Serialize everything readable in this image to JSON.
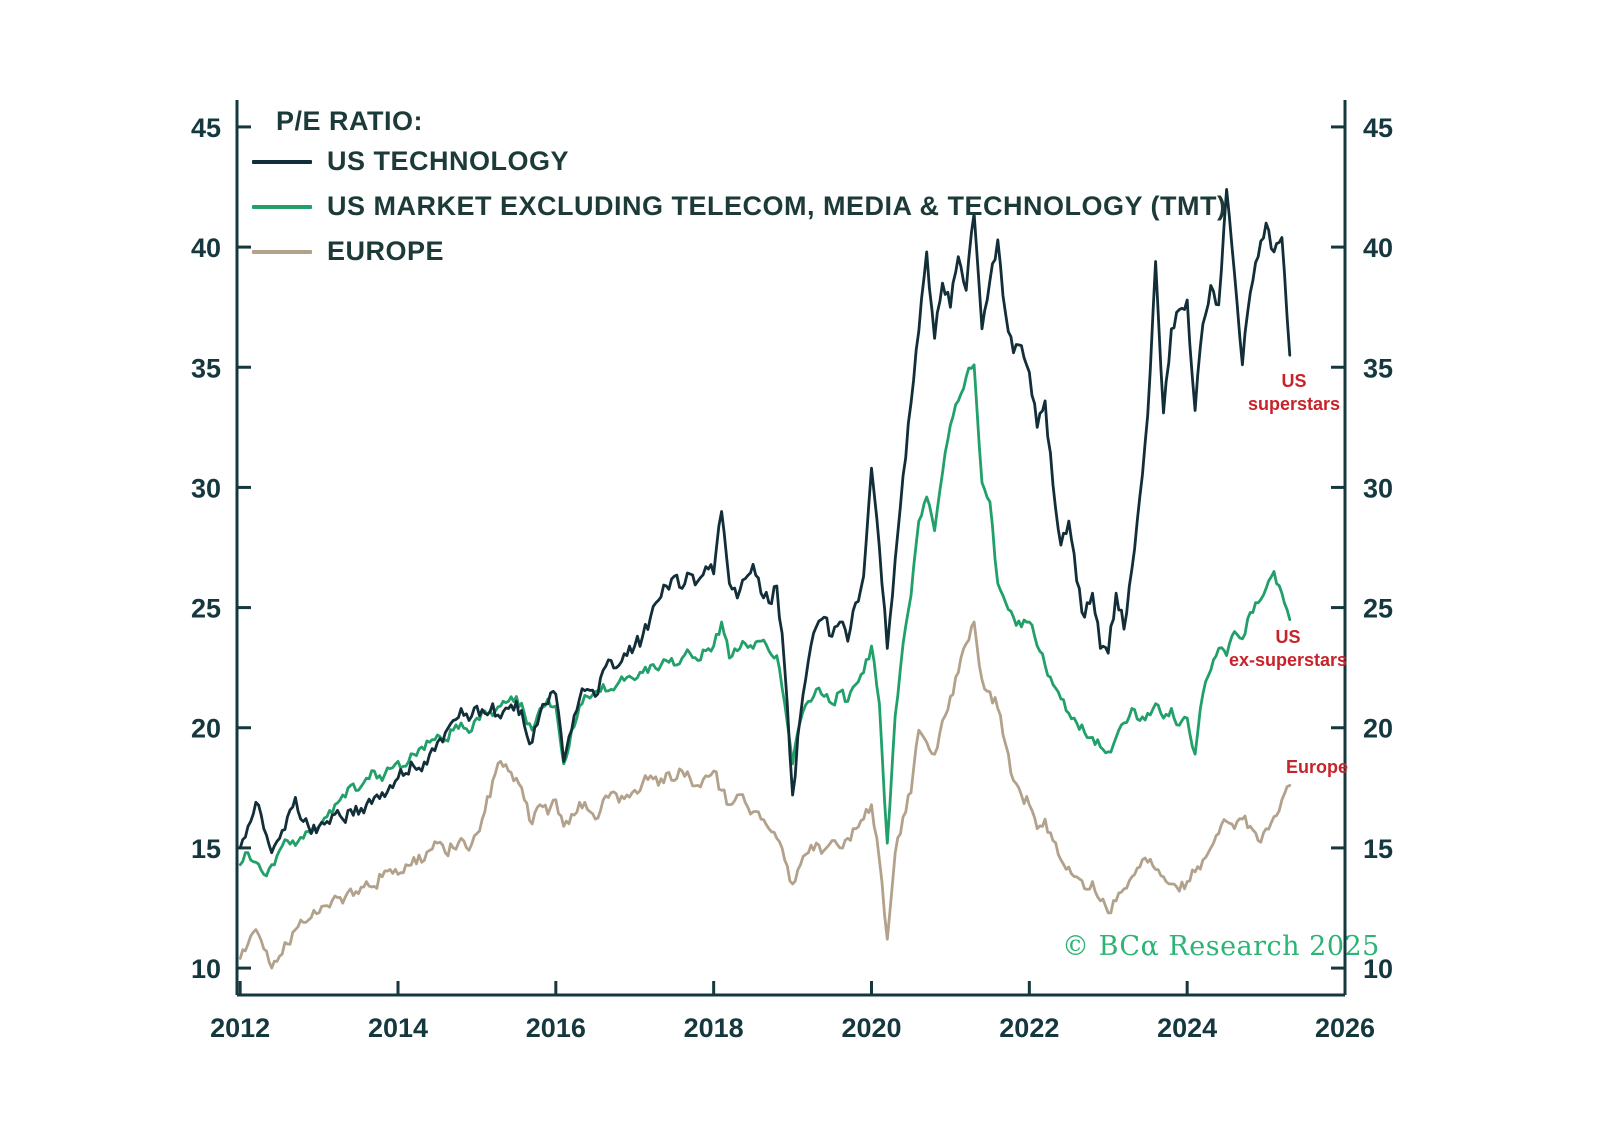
{
  "chart_data": {
    "type": "line",
    "title": "P/E RATIO:",
    "xlabel": "",
    "ylabel": "",
    "grid": false,
    "legend_position": "top-left",
    "x_ticks": [
      2012,
      2014,
      2016,
      2018,
      2020,
      2022,
      2024,
      2026
    ],
    "y_ticks": [
      10,
      15,
      20,
      25,
      30,
      35,
      40,
      45
    ],
    "xlim": [
      2011.96,
      2026
    ],
    "ylim": [
      8.88,
      46.12
    ],
    "axis_color": "#15383e",
    "x_start": 2012.0,
    "x_step": 0.1,
    "series": [
      {
        "id": "us-technology",
        "name": "US TECHNOLOGY",
        "color": "#122e38",
        "texture": 0.32,
        "values": [
          15.0,
          15.9,
          16.9,
          15.8,
          14.8,
          15.4,
          16.3,
          17.1,
          16.1,
          15.6,
          15.9,
          16.1,
          16.4,
          16.2,
          16.6,
          16.4,
          16.8,
          17.1,
          17.3,
          17.6,
          17.9,
          18.1,
          18.4,
          18.2,
          18.9,
          19.4,
          19.8,
          20.3,
          20.8,
          20.3,
          20.9,
          20.6,
          21.0,
          20.4,
          20.8,
          21.1,
          20.1,
          19.4,
          20.6,
          21.0,
          21.4,
          18.6,
          19.9,
          21.2,
          21.6,
          21.3,
          22.4,
          22.8,
          22.6,
          23.0,
          23.4,
          23.8,
          24.6,
          25.3,
          25.9,
          26.3,
          25.8,
          26.4,
          26.1,
          26.7,
          26.4,
          29.0,
          26.0,
          25.4,
          26.2,
          26.8,
          25.6,
          25.2,
          25.9,
          22.5,
          17.2,
          20.5,
          22.8,
          24.2,
          24.6,
          23.8,
          24.4,
          23.6,
          25.2,
          26.3,
          30.8,
          27.5,
          23.3,
          27.0,
          30.5,
          33.5,
          36.5,
          39.8,
          36.2,
          38.5,
          37.5,
          39.6,
          38.2,
          41.4,
          36.6,
          38.6,
          40.3,
          37.2,
          35.6,
          35.9,
          34.8,
          32.5,
          33.6,
          30.1,
          27.6,
          28.6,
          26.1,
          24.6,
          25.6,
          23.3,
          23.1,
          25.6,
          24.1,
          26.6,
          29.6,
          33.0,
          39.4,
          33.1,
          36.6,
          37.4,
          37.8,
          33.2,
          36.8,
          38.4,
          37.6,
          42.4,
          38.9,
          35.1,
          38.1,
          39.6,
          41.0,
          39.8,
          40.4,
          35.5
        ]
      },
      {
        "id": "us-ex-tmt",
        "name": "US MARKET EXCLUDING TELECOM, MEDIA & TECHNOLOGY (TMT)",
        "color": "#21a06a",
        "texture": 0.22,
        "values": [
          14.3,
          14.8,
          14.4,
          13.9,
          14.3,
          14.9,
          15.3,
          15.1,
          15.4,
          15.6,
          15.9,
          16.3,
          16.8,
          17.2,
          17.6,
          17.4,
          17.9,
          18.2,
          17.8,
          18.3,
          18.6,
          18.4,
          18.9,
          19.2,
          19.4,
          19.7,
          19.5,
          19.9,
          20.2,
          19.8,
          20.4,
          20.7,
          20.5,
          20.9,
          21.1,
          21.3,
          20.6,
          19.9,
          20.8,
          21.2,
          20.9,
          18.5,
          19.9,
          20.9,
          21.3,
          21.5,
          21.8,
          21.6,
          21.9,
          22.1,
          22.0,
          22.3,
          22.6,
          22.4,
          22.8,
          22.6,
          22.9,
          23.1,
          22.8,
          23.2,
          23.4,
          24.4,
          22.9,
          23.2,
          23.5,
          23.3,
          23.6,
          23.2,
          23.0,
          21.0,
          18.5,
          20.3,
          21.1,
          21.6,
          21.3,
          21.0,
          21.5,
          21.1,
          21.8,
          22.3,
          23.4,
          21.0,
          15.2,
          20.5,
          23.5,
          25.5,
          28.6,
          29.6,
          28.2,
          30.6,
          32.6,
          33.6,
          34.6,
          35.1,
          30.2,
          29.4,
          26.0,
          25.2,
          24.6,
          24.2,
          24.4,
          23.4,
          22.6,
          21.8,
          21.2,
          20.6,
          20.2,
          19.8,
          19.6,
          19.2,
          19.0,
          19.6,
          20.2,
          20.8,
          20.3,
          20.6,
          21.0,
          20.4,
          20.8,
          20.1,
          20.4,
          18.9,
          21.4,
          22.4,
          23.3,
          23.0,
          24.0,
          23.7,
          24.8,
          25.2,
          25.8,
          26.5,
          25.6,
          24.5
        ]
      },
      {
        "id": "europe",
        "name": "EUROPE",
        "color": "#b3a28b",
        "texture": 0.25,
        "values": [
          10.4,
          11.0,
          11.6,
          10.8,
          10.0,
          10.5,
          11.0,
          11.6,
          11.9,
          12.1,
          12.3,
          12.6,
          13.0,
          12.7,
          13.3,
          13.1,
          13.6,
          13.4,
          13.8,
          14.1,
          13.9,
          14.3,
          14.6,
          14.4,
          14.9,
          15.2,
          14.8,
          15.0,
          15.4,
          14.9,
          15.6,
          16.5,
          17.8,
          18.6,
          18.2,
          17.9,
          17.0,
          16.0,
          16.8,
          16.4,
          17.0,
          15.9,
          16.4,
          16.9,
          16.6,
          16.2,
          17.0,
          17.3,
          16.9,
          17.2,
          17.4,
          17.7,
          18.0,
          17.6,
          18.1,
          17.8,
          18.2,
          17.9,
          17.6,
          18.0,
          18.2,
          17.4,
          16.8,
          17.2,
          16.9,
          16.5,
          16.2,
          15.8,
          15.4,
          14.5,
          13.5,
          14.3,
          14.8,
          15.2,
          14.9,
          15.3,
          15.0,
          15.4,
          15.8,
          16.2,
          16.8,
          14.5,
          11.2,
          14.8,
          16.3,
          17.3,
          19.9,
          19.4,
          18.9,
          20.3,
          21.3,
          22.3,
          23.5,
          24.4,
          22.0,
          21.5,
          20.8,
          19.3,
          17.8,
          17.2,
          16.8,
          15.8,
          16.2,
          15.3,
          14.5,
          14.2,
          13.8,
          13.3,
          13.6,
          12.8,
          12.3,
          12.8,
          13.3,
          13.8,
          14.2,
          14.4,
          14.1,
          13.8,
          13.5,
          13.2,
          13.6,
          14.0,
          14.5,
          15.0,
          15.6,
          16.1,
          15.8,
          16.2,
          15.9,
          15.3,
          15.8,
          16.3,
          17.0,
          17.6
        ]
      }
    ],
    "annotations": [
      {
        "id": "us-superstars",
        "text": "US\nsuperstars",
        "color": "#c8232b"
      },
      {
        "id": "us-ex-superstars",
        "text": "US\nex-superstars",
        "color": "#c8232b"
      },
      {
        "id": "europe-label",
        "text": "Europe",
        "color": "#c8232b"
      }
    ],
    "watermark": {
      "text": "© BCα Research 2025",
      "color": "#2db374"
    }
  }
}
